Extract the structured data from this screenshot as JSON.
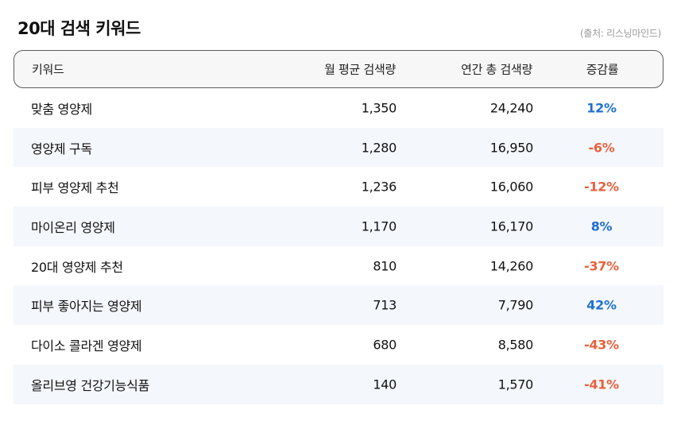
{
  "title": "20대 검색 키워드",
  "source": "(출처: 리스닝마인드)",
  "colors": {
    "positive": "#1f6fd1",
    "negative": "#e8613c",
    "alt_row": "#f4f7fb"
  },
  "table": {
    "headers": [
      "키워드",
      "월 평균 검색량",
      "연간 총 검색량",
      "증감률"
    ],
    "rows": [
      {
        "keyword": "맞춤 영양제",
        "monthly": "1,350",
        "annual": "24,240",
        "change": "12%",
        "trend": "pos"
      },
      {
        "keyword": "영양제 구독",
        "monthly": "1,280",
        "annual": "16,950",
        "change": "-6%",
        "trend": "neg"
      },
      {
        "keyword": "피부 영양제 추천",
        "monthly": "1,236",
        "annual": "16,060",
        "change": "-12%",
        "trend": "neg"
      },
      {
        "keyword": "마이온리 영양제",
        "monthly": "1,170",
        "annual": "16,170",
        "change": "8%",
        "trend": "pos"
      },
      {
        "keyword": "20대 영양제 추천",
        "monthly": "810",
        "annual": "14,260",
        "change": "-37%",
        "trend": "neg"
      },
      {
        "keyword": "피부 좋아지는 영양제",
        "monthly": "713",
        "annual": "7,790",
        "change": "42%",
        "trend": "pos"
      },
      {
        "keyword": "다이소 콜라겐 영양제",
        "monthly": "680",
        "annual": "8,580",
        "change": "-43%",
        "trend": "neg"
      },
      {
        "keyword": "올리브영 건강기능식품",
        "monthly": "140",
        "annual": "1,570",
        "change": "-41%",
        "trend": "neg"
      }
    ]
  }
}
